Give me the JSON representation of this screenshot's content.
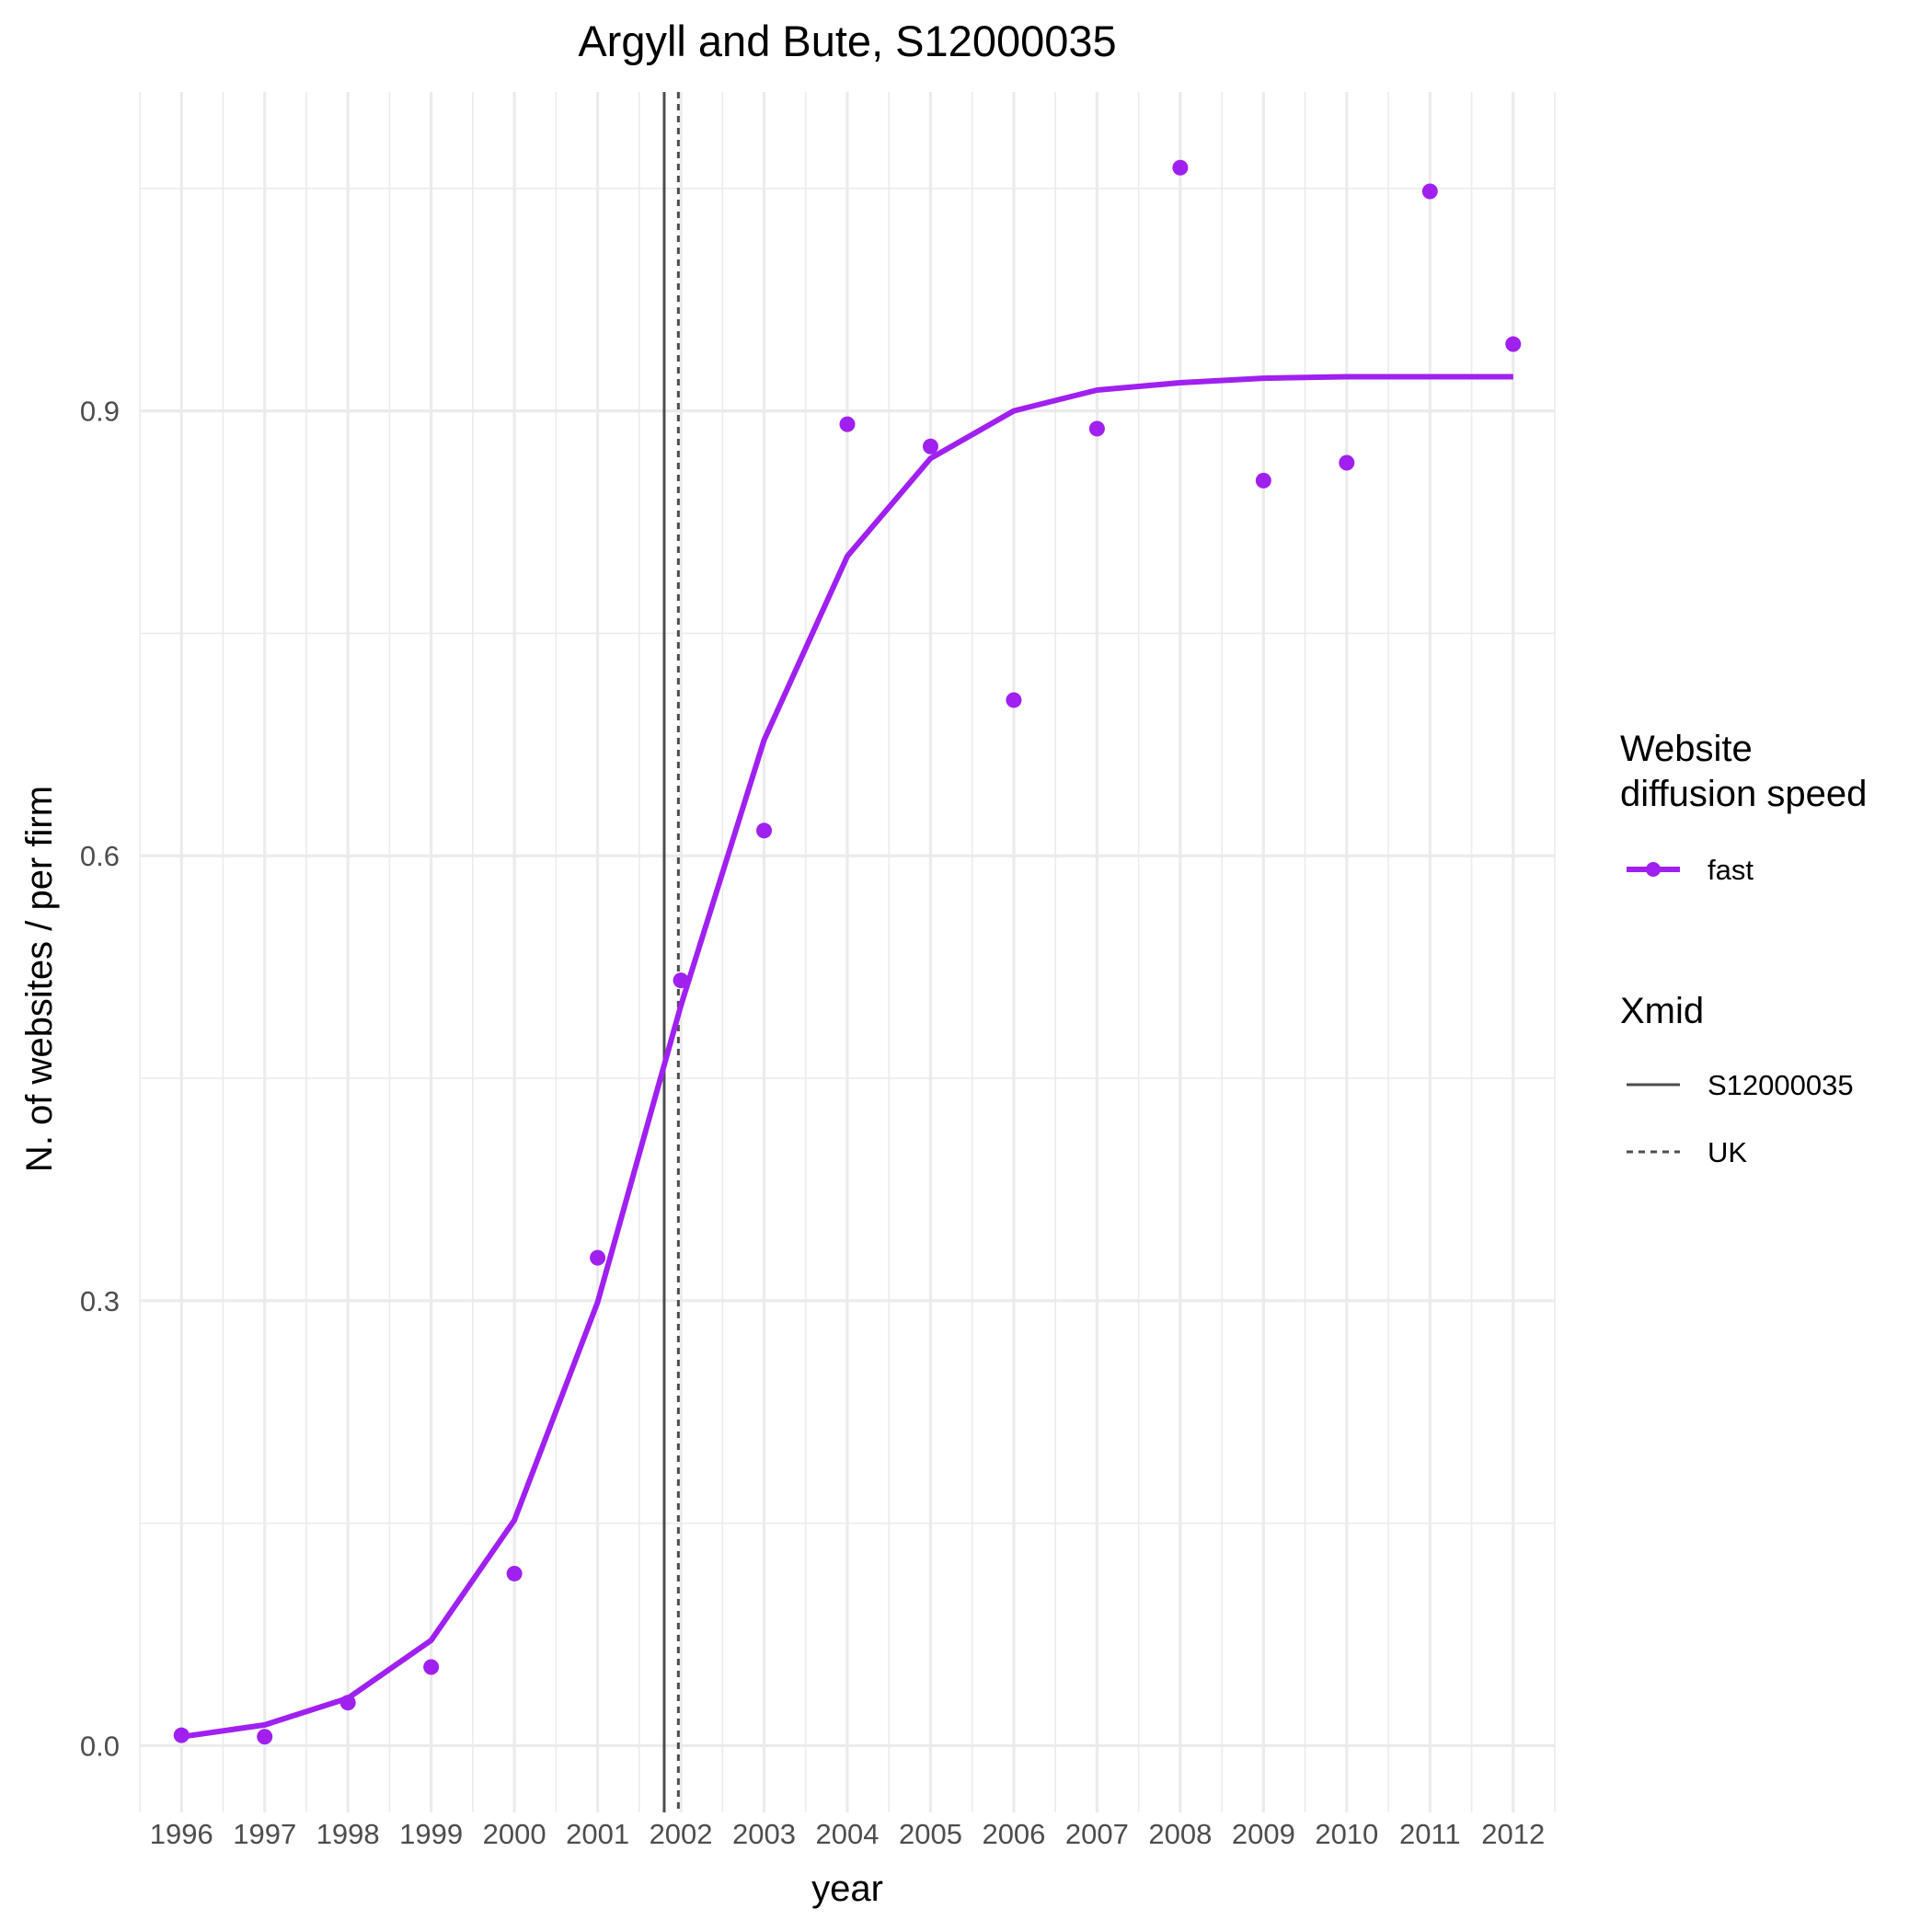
{
  "chart_data": {
    "type": "line",
    "title": "Argyll and Bute, S12000035",
    "xlabel": "year",
    "ylabel": "N. of websites / per firm",
    "xlim": [
      1995.5,
      2012.5
    ],
    "ylim": [
      -0.045,
      1.115
    ],
    "x_ticks": [
      1996,
      1997,
      1998,
      1999,
      2000,
      2001,
      2002,
      2003,
      2004,
      2005,
      2006,
      2007,
      2008,
      2009,
      2010,
      2011,
      2012
    ],
    "x_tick_labels": [
      "1996",
      "1997",
      "1998",
      "1999",
      "2000",
      "2001",
      "2002",
      "2003",
      "2004",
      "2005",
      "2006",
      "2007",
      "2008",
      "2009",
      "2010",
      "2011",
      "2012"
    ],
    "y_ticks": [
      0.0,
      0.3,
      0.6,
      0.9
    ],
    "y_tick_labels": [
      "0.0",
      "0.3",
      "0.6",
      "0.9"
    ],
    "grid": true,
    "series": [
      {
        "name": "fast",
        "kind": "points",
        "color": "#a020f0",
        "x": [
          1996,
          1997,
          1998,
          1999,
          2000,
          2001,
          2002,
          2003,
          2004,
          2005,
          2006,
          2007,
          2008,
          2009,
          2010,
          2011,
          2012
        ],
        "values": [
          0.007,
          0.006,
          0.029,
          0.053,
          0.116,
          0.329,
          0.516,
          0.617,
          0.891,
          0.876,
          0.705,
          0.888,
          1.064,
          0.853,
          0.865,
          1.048,
          0.945
        ]
      },
      {
        "name": "fast",
        "kind": "fitted-line",
        "color": "#a020f0",
        "x": [
          1996,
          1997,
          1998,
          1999,
          2000,
          2001,
          2002,
          2003,
          2004,
          2005,
          2006,
          2007,
          2008,
          2009,
          2010,
          2011,
          2012
        ],
        "values": [
          0.006,
          0.014,
          0.032,
          0.071,
          0.152,
          0.299,
          0.499,
          0.678,
          0.802,
          0.868,
          0.9,
          0.914,
          0.919,
          0.922,
          0.923,
          0.923,
          0.923
        ]
      }
    ],
    "vlines": [
      {
        "name": "S12000035",
        "x": 2001.8,
        "style": "solid",
        "color": "#4d4d4d"
      },
      {
        "name": "UK",
        "x": 2001.97,
        "style": "dotted",
        "color": "#4d4d4d"
      }
    ],
    "legend": {
      "placement": "right",
      "groups": [
        {
          "title_lines": [
            "Website",
            "diffusion speed"
          ],
          "entries": [
            {
              "label": "fast",
              "kind": "point-line",
              "color": "#a020f0"
            }
          ]
        },
        {
          "title_lines": [
            "Xmid"
          ],
          "entries": [
            {
              "label": "S12000035",
              "kind": "solid"
            },
            {
              "label": "UK",
              "kind": "dotted"
            }
          ]
        }
      ]
    }
  }
}
